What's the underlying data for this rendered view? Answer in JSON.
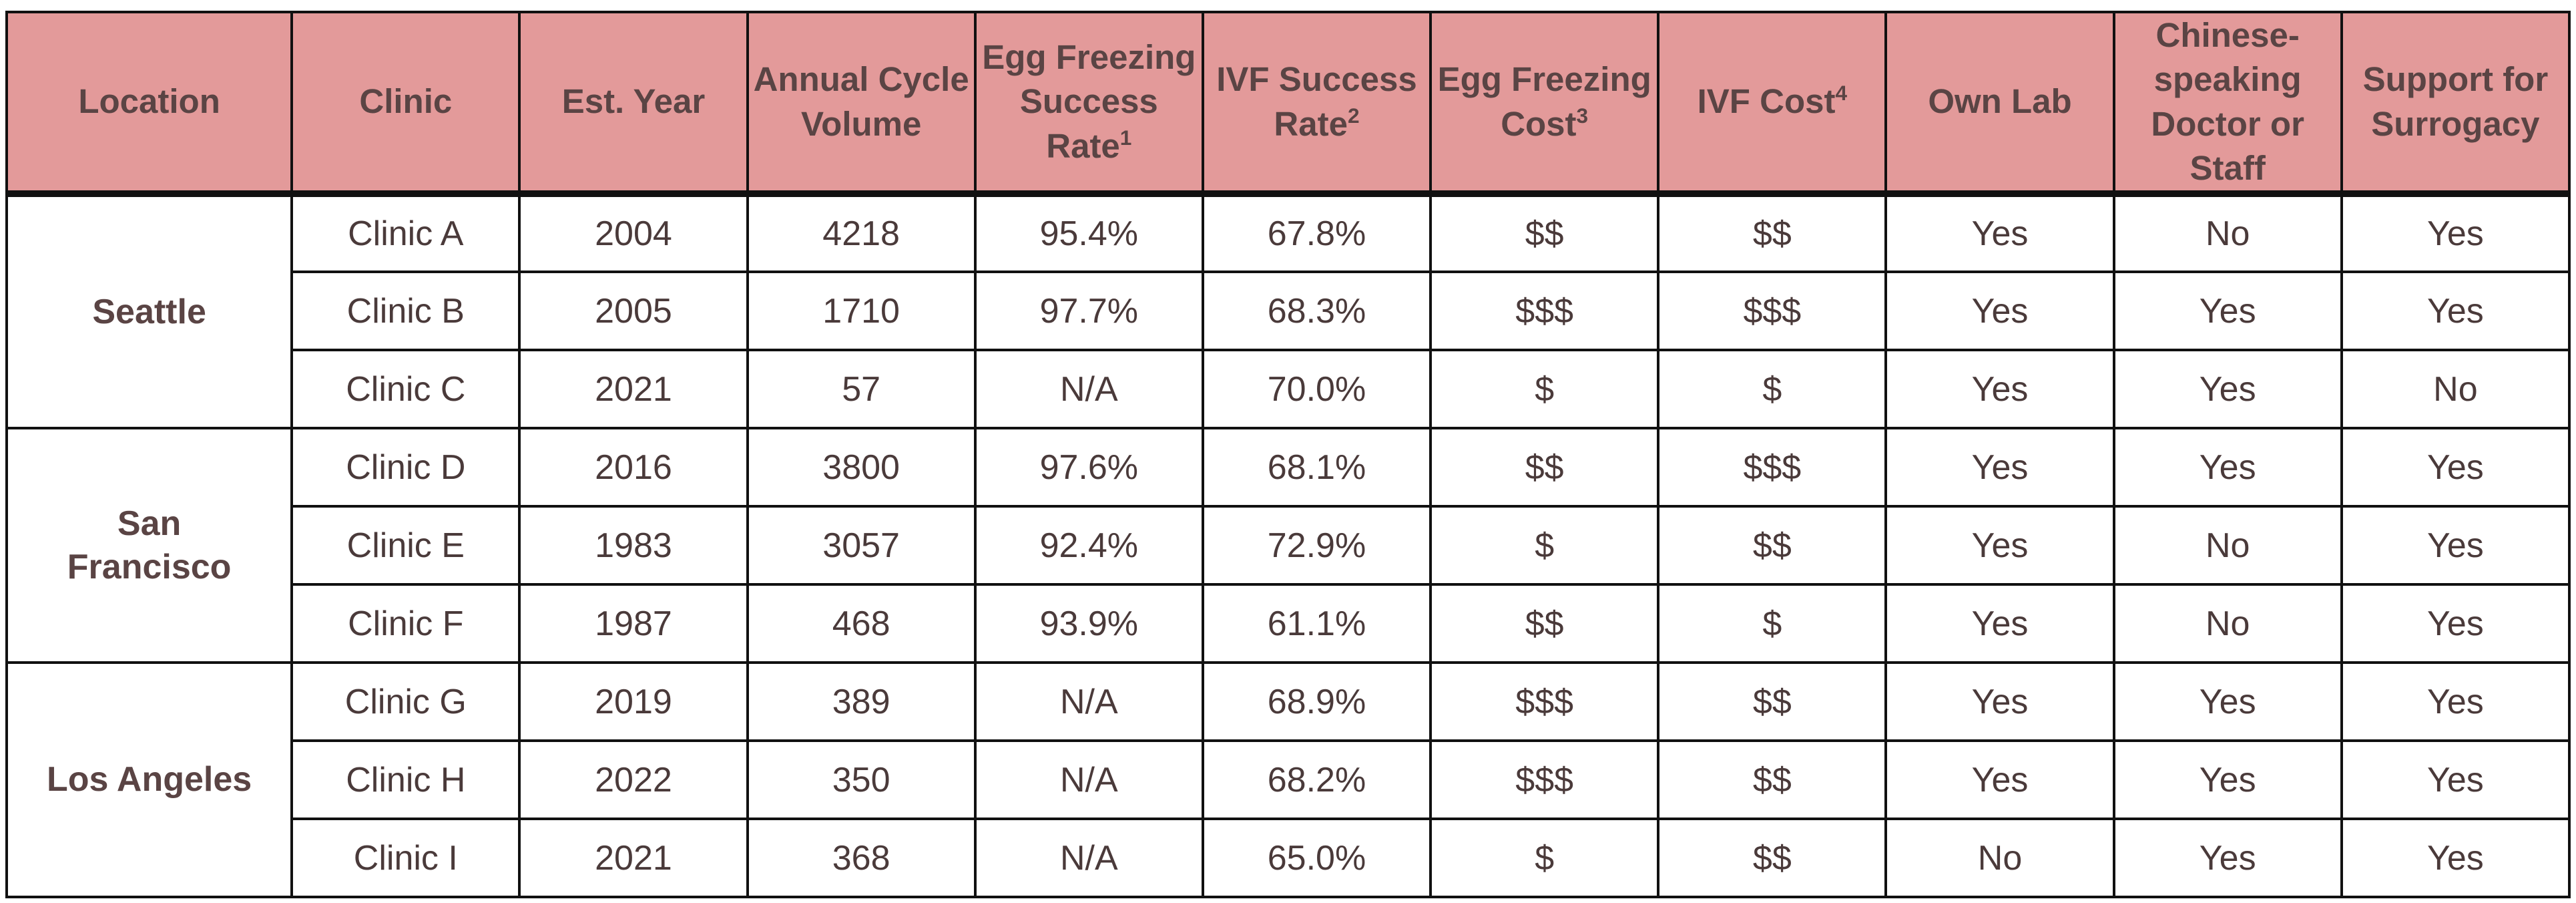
{
  "chart_data": {
    "type": "table",
    "columns": [
      {
        "label": "Location",
        "note": ""
      },
      {
        "label": "Clinic",
        "note": ""
      },
      {
        "label": "Est. Year",
        "note": ""
      },
      {
        "label": "Annual Cycle Volume",
        "note": ""
      },
      {
        "label": "Egg Freezing Success Rate",
        "note": "1"
      },
      {
        "label": "IVF Success Rate",
        "note": "2"
      },
      {
        "label": "Egg Freezing Cost",
        "note": "3"
      },
      {
        "label": "IVF Cost",
        "note": "4"
      },
      {
        "label": "Own Lab",
        "note": ""
      },
      {
        "label": "Chinese-speaking Doctor or Staff",
        "note": ""
      },
      {
        "label": "Support for Surrogacy",
        "note": ""
      }
    ],
    "groups": [
      {
        "location": "Seattle",
        "rows": [
          [
            "Clinic A",
            "2004",
            "4218",
            "95.4%",
            "67.8%",
            "$$",
            "$$",
            "Yes",
            "No",
            "Yes"
          ],
          [
            "Clinic B",
            "2005",
            "1710",
            "97.7%",
            "68.3%",
            "$$$",
            "$$$",
            "Yes",
            "Yes",
            "Yes"
          ],
          [
            "Clinic C",
            "2021",
            "57",
            "N/A",
            "70.0%",
            "$",
            "$",
            "Yes",
            "Yes",
            "No"
          ]
        ]
      },
      {
        "location": "San Francisco",
        "rows": [
          [
            "Clinic D",
            "2016",
            "3800",
            "97.6%",
            "68.1%",
            "$$",
            "$$$",
            "Yes",
            "Yes",
            "Yes"
          ],
          [
            "Clinic E",
            "1983",
            "3057",
            "92.4%",
            "72.9%",
            "$",
            "$$",
            "Yes",
            "No",
            "Yes"
          ],
          [
            "Clinic F",
            "1987",
            "468",
            "93.9%",
            "61.1%",
            "$$",
            "$",
            "Yes",
            "No",
            "Yes"
          ]
        ]
      },
      {
        "location": "Los Angeles",
        "rows": [
          [
            "Clinic G",
            "2019",
            "389",
            "N/A",
            "68.9%",
            "$$$",
            "$$",
            "Yes",
            "Yes",
            "Yes"
          ],
          [
            "Clinic H",
            "2022",
            "350",
            "N/A",
            "68.2%",
            "$$$",
            "$$",
            "Yes",
            "Yes",
            "Yes"
          ],
          [
            "Clinic I",
            "2021",
            "368",
            "N/A",
            "65.0%",
            "$",
            "$$",
            "No",
            "Yes",
            "Yes"
          ]
        ]
      }
    ]
  },
  "colors": {
    "header_bg": "#e39a9a",
    "header_text": "#5a4444",
    "body_text": "#4a3a3a",
    "border": "#111111"
  }
}
